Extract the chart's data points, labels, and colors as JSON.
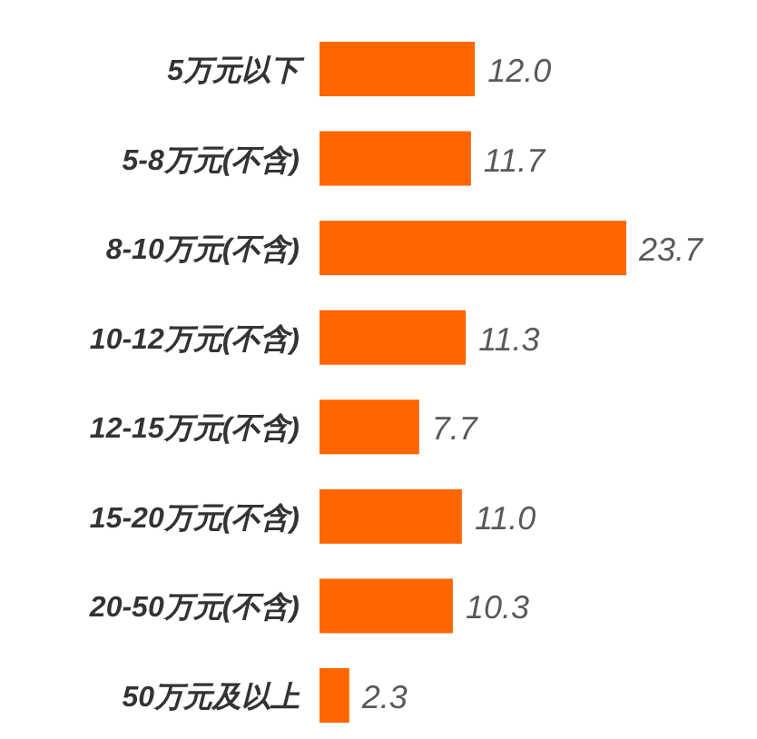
{
  "chart_data": {
    "type": "bar",
    "orientation": "horizontal",
    "categories": [
      "5万元以下",
      "5-8万元(不含)",
      "8-10万元(不含)",
      "10-12万元(不含)",
      "12-15万元(不含)",
      "15-20万元(不含)",
      "20-50万元(不含)",
      "50万元及以上"
    ],
    "values": [
      12.0,
      11.7,
      23.7,
      11.3,
      7.7,
      11.0,
      10.3,
      2.3
    ],
    "value_labels": [
      "12.0",
      "11.7",
      "23.7",
      "11.3",
      "7.7",
      "11.0",
      "10.3",
      "2.3"
    ],
    "color": "#ff6600"
  }
}
